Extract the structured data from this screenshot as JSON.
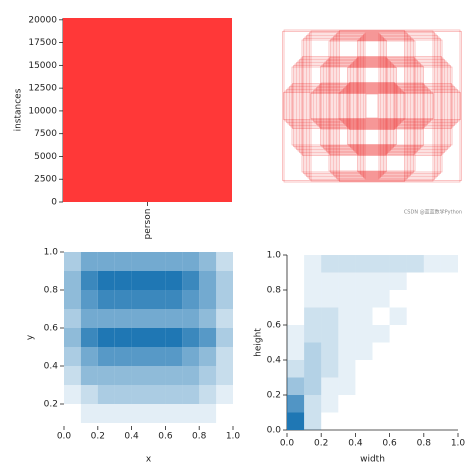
{
  "chart_data": [
    {
      "type": "bar",
      "y_label": "instances",
      "categories": [
        "person"
      ],
      "values": [
        20200
      ],
      "color": "#ff3838",
      "ylim": [
        0,
        20200
      ],
      "yticks": [
        0,
        2500,
        5000,
        7500,
        10000,
        12500,
        15000,
        17500,
        20000
      ]
    },
    {
      "type": "hist2d",
      "x_label": "x",
      "y_label": "y",
      "color": "#1f77b4",
      "x_bins": [
        0,
        0.1,
        0.2,
        0.3,
        0.4,
        0.5,
        0.6,
        0.7,
        0.8,
        0.9,
        1.0
      ],
      "y_bins": [
        0.1,
        0.2,
        0.3,
        0.4,
        0.5,
        0.6,
        0.7,
        0.8,
        0.9,
        1.0
      ],
      "counts": [
        [
          0,
          1,
          1,
          1,
          1,
          1,
          1,
          1,
          1,
          0
        ],
        [
          1,
          2,
          3,
          3,
          3,
          3,
          3,
          3,
          2,
          1
        ],
        [
          2,
          4,
          4,
          4,
          4,
          4,
          4,
          4,
          3,
          2
        ],
        [
          3,
          5,
          6,
          6,
          6,
          6,
          6,
          5,
          4,
          2
        ],
        [
          4,
          7,
          8,
          8,
          8,
          8,
          8,
          7,
          6,
          3
        ],
        [
          3,
          5,
          5,
          5,
          5,
          5,
          5,
          5,
          4,
          2
        ],
        [
          4,
          6,
          7,
          7,
          7,
          7,
          7,
          6,
          5,
          3
        ],
        [
          4,
          7,
          8,
          8,
          8,
          8,
          8,
          7,
          5,
          3
        ],
        [
          3,
          5,
          5,
          5,
          5,
          5,
          5,
          5,
          4,
          2
        ]
      ],
      "xlim": [
        0,
        1.0
      ],
      "ylim": [
        0.1,
        1.0
      ],
      "xticks": [
        {
          "value": 0,
          "label": "0.0"
        },
        0.2,
        0.4,
        0.6,
        0.8,
        {
          "value": 1.0,
          "label": "1.0"
        }
      ],
      "yticks": [
        0.2,
        0.4,
        0.6,
        0.8,
        {
          "value": 1.0,
          "label": "1.0"
        }
      ]
    },
    {
      "type": "hist2d",
      "x_label": "width",
      "y_label": "height",
      "color": "#1f77b4",
      "x_bins": [
        0,
        0.1,
        0.2,
        0.3,
        0.4,
        0.5,
        0.6,
        0.7,
        0.8,
        0.9,
        1.0
      ],
      "y_bins": [
        0,
        0.1,
        0.2,
        0.3,
        0.4,
        0.5,
        0.6,
        0.7,
        0.8,
        0.9,
        1.0
      ],
      "counts": [
        [
          9,
          2,
          0,
          0,
          0,
          0,
          0,
          0,
          0,
          0
        ],
        [
          7,
          2,
          1,
          0,
          0,
          0,
          0,
          0,
          0,
          0
        ],
        [
          4,
          3,
          1,
          1,
          0,
          0,
          0,
          0,
          0,
          0
        ],
        [
          2,
          3,
          2,
          1,
          0,
          0,
          0,
          0,
          0,
          0
        ],
        [
          1,
          3,
          2,
          1,
          1,
          0,
          0,
          0,
          0,
          0
        ],
        [
          1,
          2,
          2,
          1,
          1,
          1,
          0,
          0,
          0,
          0
        ],
        [
          0,
          2,
          2,
          1,
          1,
          0,
          1,
          0,
          0,
          0
        ],
        [
          0,
          1,
          1,
          1,
          1,
          1,
          0,
          0,
          0,
          0
        ],
        [
          0,
          1,
          1,
          1,
          1,
          1,
          1,
          0,
          0,
          0
        ],
        [
          0,
          1,
          2,
          2,
          2,
          2,
          2,
          2,
          1,
          1
        ]
      ],
      "xlim": [
        0,
        1.0
      ],
      "ylim": [
        0,
        1.0
      ],
      "xticks": [
        {
          "value": 0,
          "label": "0.0"
        },
        0.2,
        0.4,
        0.6,
        0.8,
        {
          "value": 1.0,
          "label": "1.0"
        }
      ],
      "yticks": [
        {
          "value": 0,
          "label": "0.0"
        },
        0.2,
        0.4,
        0.6,
        0.8,
        {
          "value": 1.0,
          "label": "1.0"
        }
      ]
    }
  ],
  "watermark": "CSDN @蓝蓝数学Python"
}
